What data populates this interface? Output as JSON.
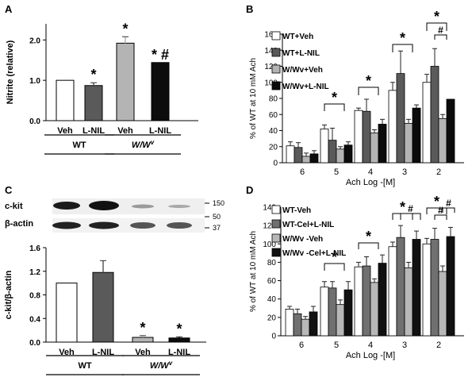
{
  "colors": {
    "white": "#ffffff",
    "dark_gray": "#5a5a5a",
    "light_gray": "#b4b4b4",
    "black": "#0c0c0c",
    "lc_mid_gray": "#707070",
    "lc_light_gray": "#b8b8b8",
    "lc_black": "#111111"
  },
  "panels": {
    "A": {
      "letter": "A"
    },
    "B": {
      "letter": "B"
    },
    "C": {
      "letter": "C"
    },
    "D": {
      "letter": "D"
    }
  },
  "blot": {
    "row1_label": "c-kit",
    "row2_label": "β-actin",
    "markers": [
      "150",
      "50",
      "37"
    ]
  },
  "chart_data": [
    {
      "panel": "A",
      "type": "bar",
      "ylabel": "Nitrite (relative)",
      "ylim": [
        0,
        2.4
      ],
      "yticks": [
        "0.0",
        "1.0",
        "2.0"
      ],
      "categories": [
        "Veh",
        "L-NIL",
        "Veh",
        "L-NIL"
      ],
      "values": [
        1.0,
        0.87,
        1.92,
        1.44
      ],
      "errors": [
        0,
        0.07,
        0.16,
        0
      ],
      "bar_colors": [
        "white",
        "dark_gray",
        "light_gray",
        "black"
      ],
      "annotations": [
        "",
        "*",
        "*",
        "* #"
      ],
      "groups": [
        {
          "label": "WT",
          "italic": false
        },
        {
          "label": "W/W",
          "sup": "v",
          "italic": true
        }
      ]
    },
    {
      "panel": "C",
      "type": "bar",
      "ylabel": "c-kit/β-actin",
      "ylim": [
        0,
        1.6
      ],
      "yticks": [
        "0.0",
        "0.4",
        "0.8",
        "1.2",
        "1.6"
      ],
      "categories": [
        "Veh",
        "L-NIL",
        "Veh",
        "L-NIL"
      ],
      "values": [
        1.0,
        1.18,
        0.08,
        0.07
      ],
      "errors": [
        0,
        0.2,
        0.03,
        0.02
      ],
      "bar_colors": [
        "white",
        "dark_gray",
        "light_gray",
        "black"
      ],
      "annotations": [
        "",
        "",
        "*",
        "*"
      ],
      "groups": [
        {
          "label": "WT",
          "italic": false
        },
        {
          "label": "W/W",
          "sup": "v",
          "italic": true
        }
      ]
    },
    {
      "panel": "B",
      "type": "bar",
      "ylabel": "% of WT at 10 mM Ach",
      "xlabel": "",
      "ylim": [
        0,
        160
      ],
      "yticks": [
        "0",
        "20",
        "40",
        "60",
        "80",
        "100",
        "120",
        "140",
        "160"
      ],
      "categories": [
        "6",
        "5",
        "4",
        "3",
        "2"
      ],
      "series": [
        {
          "name": "WT+Veh",
          "color": "white",
          "values": [
            21,
            42,
            65,
            90,
            100
          ],
          "errors": [
            5,
            5,
            3,
            10,
            10
          ]
        },
        {
          "name": "WT+L-NIL",
          "color": "dark_gray",
          "values": [
            19,
            28,
            64,
            111,
            120
          ],
          "errors": [
            6,
            15,
            15,
            28,
            22
          ]
        },
        {
          "name": "W/Wv+Veh",
          "color": "light_gray",
          "values": [
            8,
            17,
            37,
            49,
            55
          ],
          "errors": [
            4,
            3,
            4,
            5,
            5
          ]
        },
        {
          "name": "W/Wv+L-NIL",
          "color": "black",
          "values": [
            11,
            22,
            48,
            68,
            79
          ],
          "errors": [
            4,
            4,
            6,
            4,
            0
          ]
        }
      ],
      "annotations": [
        "*",
        "*",
        "*",
        "*",
        "#"
      ]
    },
    {
      "panel": "D",
      "type": "bar",
      "ylabel": "% of WT at 10 mM Ach",
      "xlabel": "Ach Log -[M]",
      "ylim": [
        0,
        140
      ],
      "yticks": [
        "0",
        "20",
        "40",
        "60",
        "80",
        "100",
        "120",
        "140"
      ],
      "categories": [
        "6",
        "5",
        "4",
        "3",
        "2"
      ],
      "series": [
        {
          "name": "WT-Veh",
          "color": "white",
          "values": [
            29,
            53,
            75,
            97,
            100
          ],
          "errors": [
            3,
            6,
            5,
            5,
            6
          ]
        },
        {
          "name": "WT-Cel+L-NIL",
          "color": "lc_mid_gray",
          "values": [
            24,
            52,
            76,
            107,
            105
          ],
          "errors": [
            5,
            7,
            10,
            13,
            12
          ]
        },
        {
          "name": "W/Wv -Veh",
          "color": "lc_light_gray",
          "values": [
            18,
            34,
            58,
            74,
            70
          ],
          "errors": [
            3,
            5,
            4,
            6,
            6
          ]
        },
        {
          "name": "W/Wv -Cel+L-NIL",
          "color": "lc_black",
          "values": [
            26,
            50,
            79,
            105,
            108
          ],
          "errors": [
            6,
            9,
            9,
            9,
            10
          ]
        }
      ],
      "annotations": [
        "*",
        "*",
        "*",
        "#",
        "*",
        "#",
        "#"
      ]
    }
  ],
  "shared_xlabel_B": "Ach Log -[M]"
}
